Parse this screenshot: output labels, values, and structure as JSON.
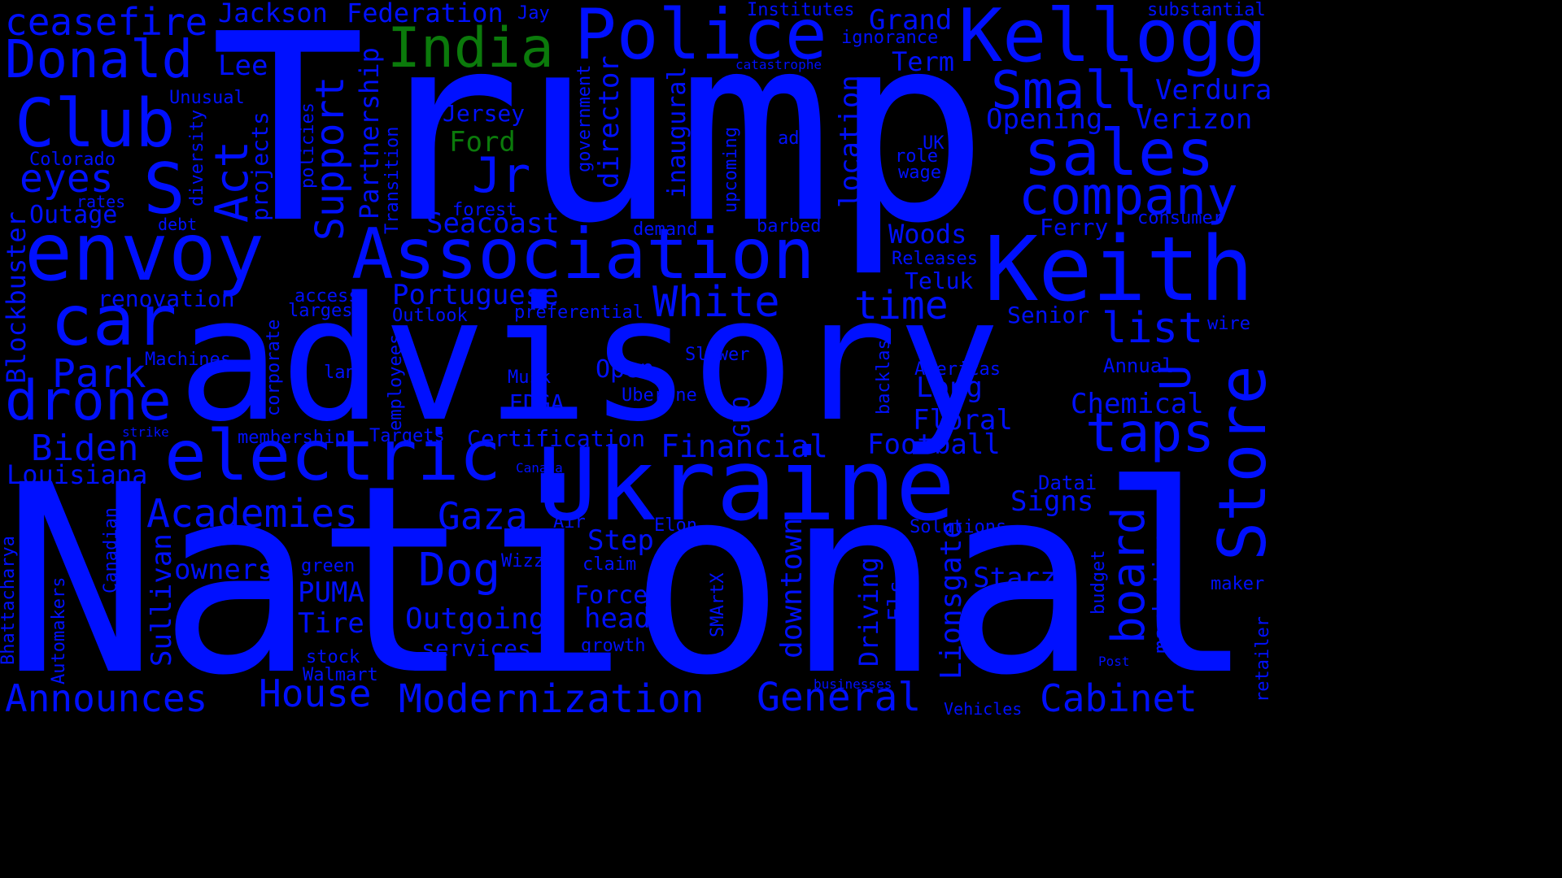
{
  "colors": {
    "background": "#000000",
    "primary": "#0010ff",
    "accent": "#0b7a0b"
  },
  "words": {
    "trump": "Trump",
    "national": "National",
    "advisory": "advisory",
    "ukraine": "Ukraine",
    "envoy": "envoy",
    "association": "Association",
    "electric": "electric",
    "keith": "Keith",
    "police": "Police",
    "kellogg": "Kellogg",
    "india": "India",
    "donald": "Donald",
    "club": "Club",
    "ceasefire": "ceasefire",
    "jackson": "Jackson",
    "federation": "Federation",
    "jay": "Jay",
    "lee": "Lee",
    "s": "S",
    "car": "car",
    "drone": "drone",
    "park": "Park",
    "biden": "Biden",
    "louisiana": "Louisiana",
    "eyes": "eyes",
    "outage": "Outage",
    "colorado": "Colorado",
    "rates": "rates",
    "debt": "debt",
    "unusual": "Unusual",
    "renovation": "renovation",
    "academies": "Academies",
    "machines": "Machines",
    "strike": "strike",
    "announces": "Announces",
    "house": "House",
    "modernization": "Modernization",
    "general": "General",
    "cabinet": "Cabinet",
    "small": "Small",
    "sales": "sales",
    "company": "company",
    "jersey": "Jersey",
    "ford": "Ford",
    "jr": "Jr",
    "seacoast": "Seacoast",
    "portuguese": "Portuguese",
    "outlook": "Outlook",
    "white": "White",
    "time": "time",
    "list": "list",
    "taps": "taps",
    "store": "Store",
    "board": "board",
    "u": "U",
    "opening": "Opening",
    "verizon": "Verizon",
    "verdura": "Verdura",
    "grand": "Grand",
    "term": "Term",
    "institutes": "Institutes",
    "substantial": "substantial",
    "ignorance": "ignorance",
    "catastrophe": "catastrophe",
    "ad": "ad",
    "uk": "UK",
    "role": "role",
    "wage": "wage",
    "woods": "Woods",
    "ferry": "Ferry",
    "consumer": "consumer",
    "releases": "Releases",
    "teluk": "Teluk",
    "senior": "Senior",
    "wire": "wire",
    "annual": "Annual",
    "americas": "Americas",
    "long": "Long",
    "chemical": "Chemical",
    "floral": "Floral",
    "football": "Football",
    "financial": "Financial",
    "datai": "Datai",
    "signs": "Signs",
    "solutions": "Solutions",
    "starz": "Starz",
    "maker": "maker",
    "post": "Post",
    "businesses": "businesses",
    "vehicles": "Vehicles",
    "forest": "forest",
    "demand": "demand",
    "barbed": "barbed",
    "access": "access",
    "largest": "largest",
    "preferential": "preferential",
    "open": "Open",
    "slower": "Slower",
    "musk": "Musk",
    "edga": "EDGA",
    "uberone": "UberOne",
    "land": "land",
    "membership": "membership",
    "targets": "Targets",
    "certification": "Certification",
    "canada": "Canada",
    "gaza": "Gaza",
    "air": "Air",
    "elon": "Elon",
    "step": "Step",
    "dog": "Dog",
    "wizz": "Wizz",
    "claim": "claim",
    "owners": "owners",
    "green": "green",
    "puma": "PUMA",
    "tire": "Tire",
    "stock": "stock",
    "walmart": "Walmart",
    "outgoing": "Outgoing",
    "services": "services",
    "force": "Force",
    "head": "head",
    "growth": "growth",
    "blockbuster": "Blockbuster",
    "act": "Act",
    "projects": "projects",
    "support": "Support",
    "policies": "policies",
    "partnership": "Partnership",
    "transition": "Transition",
    "diversity": "diversity",
    "government": "government",
    "director": "director",
    "inaugural": "inaugural",
    "upcoming": "upcoming",
    "location": "location",
    "corporate": "corporate",
    "employees": "employees",
    "geo": "GEO",
    "backlash": "backlash",
    "bhattacharya": "Bhattacharya",
    "automakers": "Automakers",
    "canadian": "Canadian",
    "sullivan": "Sullivan",
    "smartx": "SMArtX",
    "downtown": "downtown",
    "driving": "Driving",
    "els": "Els",
    "lionsgate": "Lionsgate",
    "marketing": "marketing",
    "budget": "budget",
    "retailer": "retailer"
  }
}
